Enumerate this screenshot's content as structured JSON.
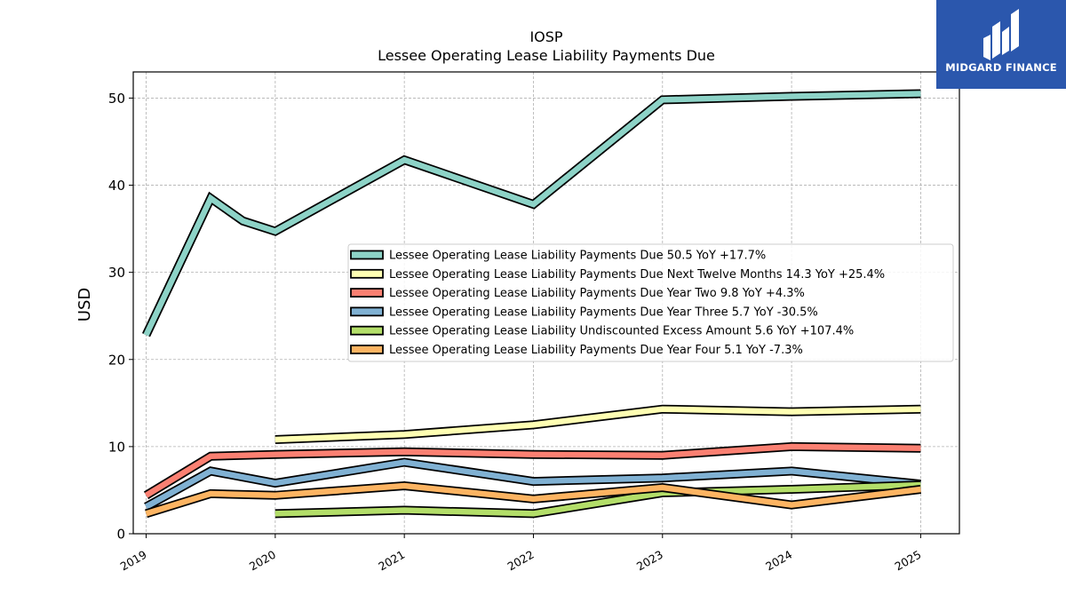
{
  "chart_data": {
    "type": "line",
    "title": "IOSP",
    "subtitle": "Lessee Operating Lease Liability Payments Due",
    "xlabel": "",
    "ylabel": "USD",
    "x_ticks": [
      "2019",
      "2020",
      "2021",
      "2022",
      "2023",
      "2024",
      "2025"
    ],
    "xlim": [
      2018.9,
      2025.3
    ],
    "ylim": [
      0,
      53
    ],
    "y_ticks": [
      0,
      10,
      20,
      30,
      40,
      50
    ],
    "grid": true,
    "legend_position": "center-right",
    "series": [
      {
        "name": "Lessee Operating Lease Liability Payments Due",
        "legend": "Lessee Operating Lease Liability Payments Due  50.5 YoY +17.7%",
        "color": "#8dd3c7",
        "x": [
          2019.0,
          2019.5,
          2019.75,
          2020.0,
          2021.0,
          2022.0,
          2023.0,
          2024.0,
          2025.0
        ],
        "y": [
          22.8,
          38.5,
          35.9,
          34.7,
          42.9,
          37.8,
          49.8,
          50.2,
          50.5
        ]
      },
      {
        "name": "Lessee Operating Lease Liability Payments Due Next Twelve Months",
        "legend": "Lessee Operating Lease Liability Payments Due Next Twelve Months  14.3 YoY +25.4%",
        "color": "#ffffb3",
        "x": [
          2020.0,
          2021.0,
          2022.0,
          2023.0,
          2024.0,
          2025.0
        ],
        "y": [
          10.8,
          11.4,
          12.5,
          14.3,
          14.0,
          14.3
        ]
      },
      {
        "name": "Lessee Operating Lease Liability Payments Due Year Two",
        "legend": "Lessee Operating Lease Liability Payments Due Year Two  9.8 YoY +4.3%",
        "color": "#fb8072",
        "x": [
          2019.0,
          2019.5,
          2020.0,
          2021.0,
          2022.0,
          2023.0,
          2024.0,
          2025.0
        ],
        "y": [
          4.4,
          8.9,
          9.1,
          9.4,
          9.1,
          9.0,
          10.0,
          9.8
        ]
      },
      {
        "name": "Lessee Operating Lease Liability Payments Due Year Three",
        "legend": "Lessee Operating Lease Liability Payments Due Year Three  5.7 YoY -30.5%",
        "color": "#80b1d3",
        "x": [
          2019.0,
          2019.5,
          2020.0,
          2021.0,
          2022.0,
          2023.0,
          2024.0,
          2025.0
        ],
        "y": [
          3.1,
          7.2,
          5.8,
          8.2,
          6.0,
          6.4,
          7.2,
          5.7
        ]
      },
      {
        "name": "Lessee Operating Lease Liability Undiscounted Excess Amount",
        "legend": "Lessee Operating Lease Liability Undiscounted Excess Amount  5.6 YoY +107.4%",
        "color": "#b3de69",
        "x": [
          2020.0,
          2021.0,
          2022.0,
          2023.0,
          2024.0,
          2025.0
        ],
        "y": [
          2.3,
          2.7,
          2.3,
          4.7,
          5.1,
          5.6
        ]
      },
      {
        "name": "Lessee Operating Lease Liability Payments Due Year Four",
        "legend": "Lessee Operating Lease Liability Payments Due Year Four  5.1 YoY -7.3%",
        "color": "#fdb462",
        "x": [
          2019.0,
          2019.5,
          2020.0,
          2021.0,
          2022.0,
          2023.0,
          2024.0,
          2025.0
        ],
        "y": [
          2.3,
          4.6,
          4.4,
          5.5,
          4.0,
          5.3,
          3.3,
          5.1
        ]
      }
    ]
  },
  "brand": {
    "name": "MIDGARD FINANCE",
    "background_color": "#2b57ad"
  }
}
